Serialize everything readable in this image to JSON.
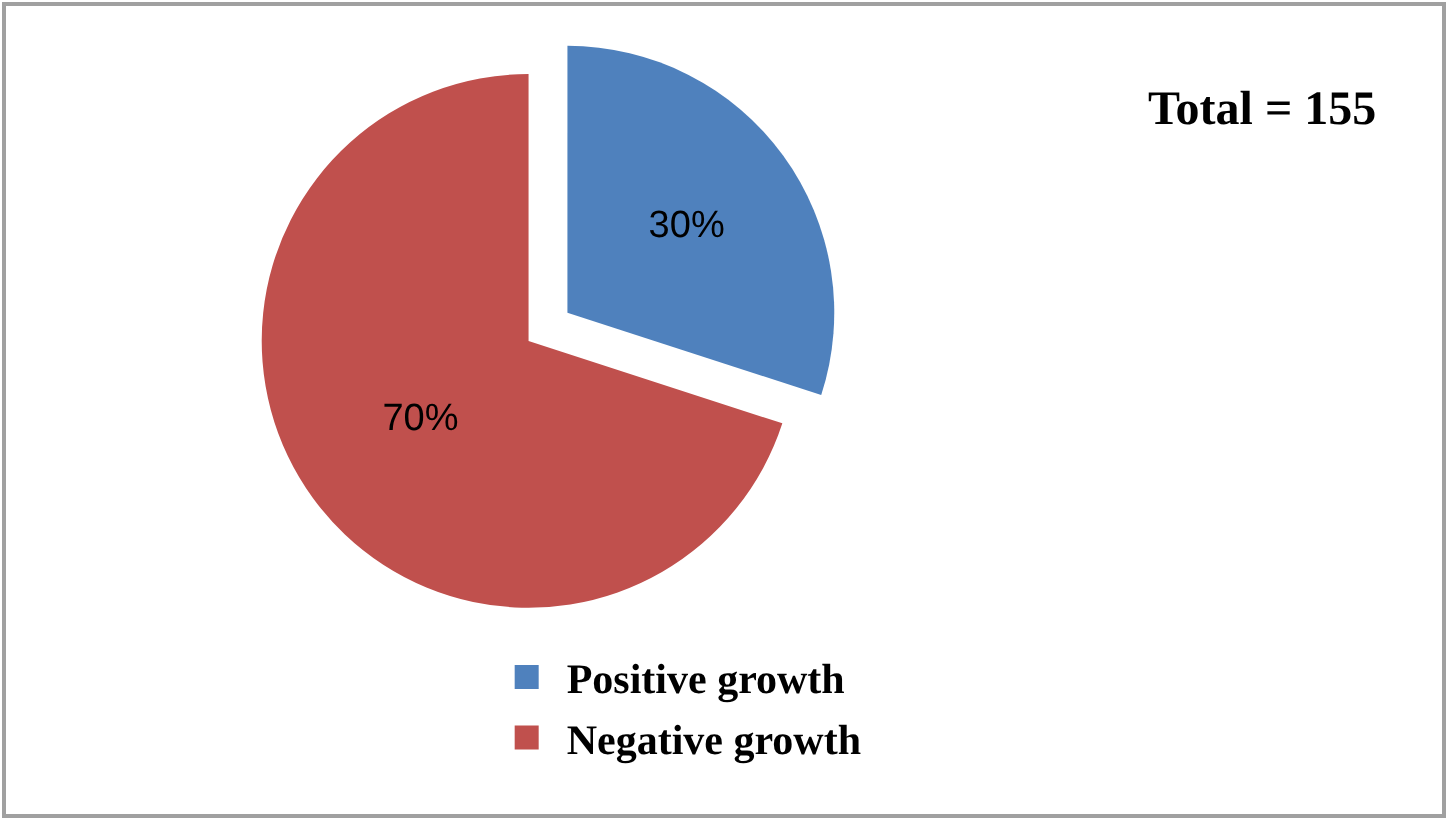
{
  "chart_data": {
    "type": "pie",
    "categories": [
      "Positive growth",
      "Negative growth"
    ],
    "values": [
      30,
      70
    ],
    "colors": [
      "#4f81bd",
      "#c0504d"
    ],
    "value_labels": [
      "30%",
      "70%"
    ],
    "annotations": [
      "Total = 155"
    ],
    "legend": "bottom"
  }
}
